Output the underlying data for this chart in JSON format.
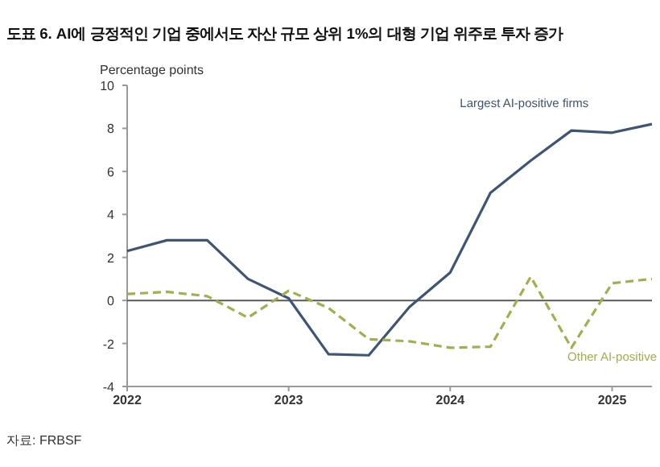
{
  "chart_data": {
    "type": "line",
    "title": "도표 6. AI에 긍정적인 기업 중에서도 자산 규모 상위 1%의 대형 기업 위주로 투자 증가",
    "ylabel": "Percentage points",
    "x": [
      "2022-01",
      "2022-04",
      "2022-07",
      "2022-10",
      "2023-01",
      "2023-04",
      "2023-07",
      "2023-10",
      "2024-01",
      "2024-04",
      "2024-07",
      "2024-10",
      "2025-01",
      "2025-04"
    ],
    "series": [
      {
        "name": "Largest AI-positive firms",
        "color": "#3f5673",
        "line_style": "solid",
        "values": [
          2.3,
          2.8,
          2.8,
          1.0,
          0.1,
          -2.5,
          -2.55,
          -0.3,
          1.3,
          5.0,
          6.5,
          7.9,
          7.8,
          8.2
        ]
      },
      {
        "name": "Other AI-positive",
        "color": "#a3ae4f",
        "line_style": "dashed",
        "values": [
          0.3,
          0.4,
          0.2,
          -0.8,
          0.45,
          -0.35,
          -1.8,
          -1.9,
          -2.2,
          -2.15,
          1.1,
          -2.2,
          0.8,
          1.0
        ]
      }
    ],
    "xlim": [
      "2022-01",
      "2025-04"
    ],
    "xticks": [
      {
        "value": "2022-01",
        "label": "2022"
      },
      {
        "value": "2023-01",
        "label": "2023"
      },
      {
        "value": "2024-01",
        "label": "2024"
      },
      {
        "value": "2025-01",
        "label": "2025"
      }
    ],
    "ylim": [
      -4,
      10
    ],
    "yticks": [
      -4,
      -2,
      0,
      2,
      4,
      6,
      8,
      10
    ],
    "ref_lines": [
      {
        "axis": "y",
        "value": 0,
        "color": "#595959"
      }
    ],
    "grid": false,
    "legend": false,
    "marker": "none",
    "annotations": [
      "자료: FRBSF"
    ]
  }
}
